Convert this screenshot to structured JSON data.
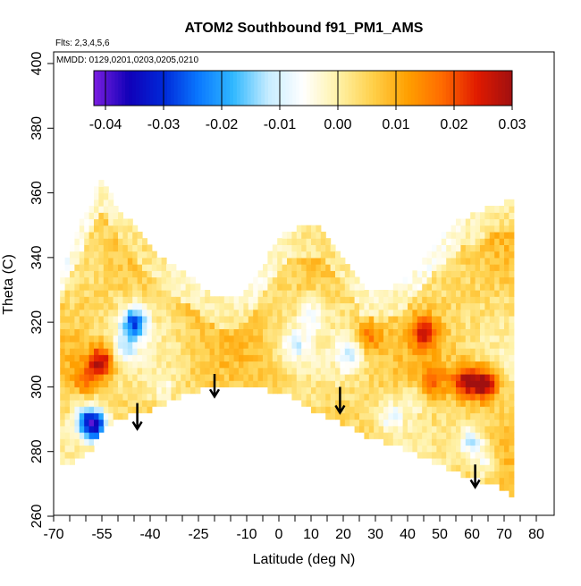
{
  "chart_data": {
    "type": "heatmap",
    "title": "ATOM2 Southbound f91_PM1_AMS",
    "flights_label": "Flts: 2,3,4,5,6",
    "dates_label": "MMDD: 0129,0201,0203,0205,0210",
    "xlabel": "Latitude (deg N)",
    "ylabel": "Theta (C)",
    "xlim": [
      -70,
      80
    ],
    "ylim": [
      260,
      400
    ],
    "x_ticks": [
      -70,
      -55,
      -40,
      -25,
      -10,
      0,
      10,
      20,
      30,
      40,
      50,
      60,
      70,
      80
    ],
    "x_minor_ticks": [
      -65,
      -60,
      -50,
      -45,
      -35,
      -30,
      -20,
      -15,
      -5,
      5,
      15,
      25,
      35,
      45,
      55,
      65,
      75
    ],
    "y_ticks": [
      260,
      280,
      300,
      320,
      340,
      360,
      380,
      400
    ],
    "colorbar": {
      "min": -0.042,
      "max": 0.03,
      "ticks": [
        -0.04,
        -0.03,
        -0.02,
        -0.01,
        0.0,
        0.01,
        0.02,
        0.03
      ],
      "tick_labels": [
        "-0.04",
        "-0.03",
        "-0.02",
        "-0.01",
        "0.00",
        "0.01",
        "0.02",
        "0.03"
      ],
      "colors": [
        "#7b1fe0",
        "#1100b8",
        "#0028d8",
        "#0a78ff",
        "#30b8ff",
        "#c6ecff",
        "#ffffff",
        "#fff2a8",
        "#ffd04a",
        "#ffa000",
        "#ff6a00",
        "#e01a00",
        "#a01010"
      ]
    },
    "boundary": {
      "lat": [
        -68,
        -66,
        -63,
        -61,
        -58,
        -56,
        -54,
        -51,
        -47,
        -42,
        -37,
        -30,
        -24,
        -18,
        -12,
        -9,
        -3,
        2,
        8,
        13,
        16,
        22,
        26,
        32,
        38,
        43,
        47,
        52,
        57,
        62,
        66,
        70,
        72
      ],
      "theta_top": [
        335,
        340,
        347,
        352,
        357,
        364,
        363,
        357,
        352,
        346,
        340,
        336,
        331,
        327,
        328,
        331,
        341,
        348,
        350,
        349,
        345,
        338,
        331,
        329,
        332,
        337,
        343,
        348,
        352,
        354,
        356,
        357,
        357
      ],
      "theta_bottom": [
        275,
        276,
        277,
        278,
        281,
        284,
        287,
        290,
        291,
        292,
        294,
        297,
        299,
        300,
        300,
        300,
        299,
        298,
        294,
        292,
        290,
        288,
        285,
        283,
        281,
        279,
        277,
        275,
        273,
        271,
        270,
        268,
        267
      ]
    },
    "anomalies": [
      {
        "lat": -57,
        "theta": 288,
        "value": -0.032
      },
      {
        "lat": -60,
        "theta": 290,
        "value": -0.018
      },
      {
        "lat": -45,
        "theta": 320,
        "value": -0.028
      },
      {
        "lat": -48,
        "theta": 312,
        "value": -0.012
      },
      {
        "lat": -55,
        "theta": 308,
        "value": 0.024
      },
      {
        "lat": -60,
        "theta": 303,
        "value": 0.012
      },
      {
        "lat": -36,
        "theta": 300,
        "value": -0.006
      },
      {
        "lat": 5,
        "theta": 313,
        "value": -0.012
      },
      {
        "lat": 10,
        "theta": 322,
        "value": -0.01
      },
      {
        "lat": 22,
        "theta": 310,
        "value": -0.012
      },
      {
        "lat": 35,
        "theta": 291,
        "value": -0.011
      },
      {
        "lat": 42,
        "theta": 296,
        "value": -0.007
      },
      {
        "lat": 60,
        "theta": 283,
        "value": -0.016
      },
      {
        "lat": 64,
        "theta": 276,
        "value": -0.01
      },
      {
        "lat": 28,
        "theta": 316,
        "value": 0.012
      },
      {
        "lat": 45,
        "theta": 317,
        "value": 0.018
      },
      {
        "lat": 58,
        "theta": 302,
        "value": 0.024
      },
      {
        "lat": 64,
        "theta": 301,
        "value": 0.028
      },
      {
        "lat": 48,
        "theta": 302,
        "value": 0.012
      },
      {
        "lat": -27,
        "theta": 323,
        "value": 0.003
      },
      {
        "lat": -20,
        "theta": 335,
        "value": 0.008
      }
    ],
    "arrows": [
      {
        "lat": -44,
        "theta_top": 295,
        "theta_tip": 287
      },
      {
        "lat": -20,
        "theta_top": 304,
        "theta_tip": 297
      },
      {
        "lat": 19,
        "theta_top": 300,
        "theta_tip": 292
      },
      {
        "lat": 61,
        "theta_top": 276,
        "theta_tip": 269
      }
    ]
  }
}
